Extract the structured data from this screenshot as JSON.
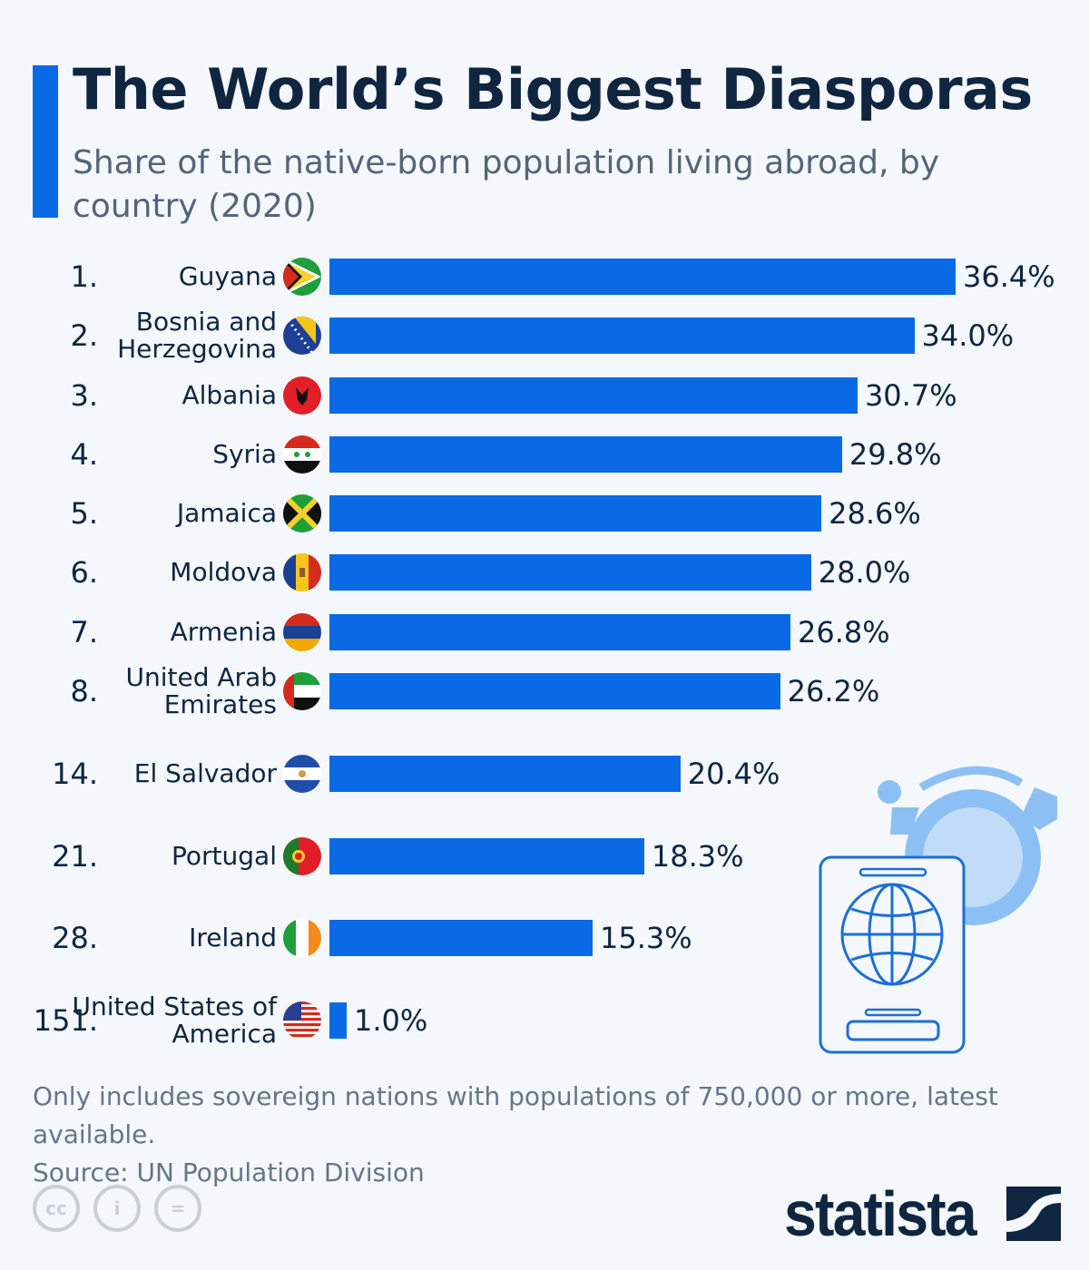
{
  "header": {
    "title": "The World’s Biggest Diasporas",
    "subtitle": "Share of the native-born population living abroad, by country (2020)"
  },
  "chart_data": {
    "type": "bar",
    "orientation": "horizontal",
    "title": "The World’s Biggest Diasporas",
    "subtitle": "Share of the native-born population living abroad, by country (2020)",
    "categories": [
      "Guyana",
      "Bosnia and Herzegovina",
      "Albania",
      "Syria",
      "Jamaica",
      "Moldova",
      "Armenia",
      "United Arab Emirates",
      "El Salvador",
      "Portugal",
      "Ireland",
      "United States of America"
    ],
    "ranks": [
      "1.",
      "2.",
      "3.",
      "4.",
      "5.",
      "6.",
      "7.",
      "8.",
      "14.",
      "21.",
      "28.",
      "151."
    ],
    "values": [
      36.4,
      34.0,
      30.7,
      29.8,
      28.6,
      28.0,
      26.8,
      26.2,
      20.4,
      18.3,
      15.3,
      1.0
    ],
    "labels": [
      "36.4%",
      "34.0%",
      "30.7%",
      "29.8%",
      "28.6%",
      "28.0%",
      "26.8%",
      "26.2%",
      "20.4%",
      "18.3%",
      "15.3%",
      "1.0%"
    ],
    "flags": [
      "guyana-flag",
      "bosnia-flag",
      "albania-flag",
      "syria-flag",
      "jamaica-flag",
      "moldova-flag",
      "armenia-flag",
      "uae-flag",
      "el-salvador-flag",
      "portugal-flag",
      "ireland-flag",
      "usa-flag"
    ],
    "bar_color": "#0a6ae6",
    "grid": false
  },
  "footer": {
    "note": "Only includes sovereign nations with populations of 750,000 or more, latest available.",
    "source": "Source: UN Population Division",
    "brand": "statista",
    "license_icons": [
      "cc-icon",
      "attribution-icon",
      "no-derivatives-icon"
    ]
  }
}
